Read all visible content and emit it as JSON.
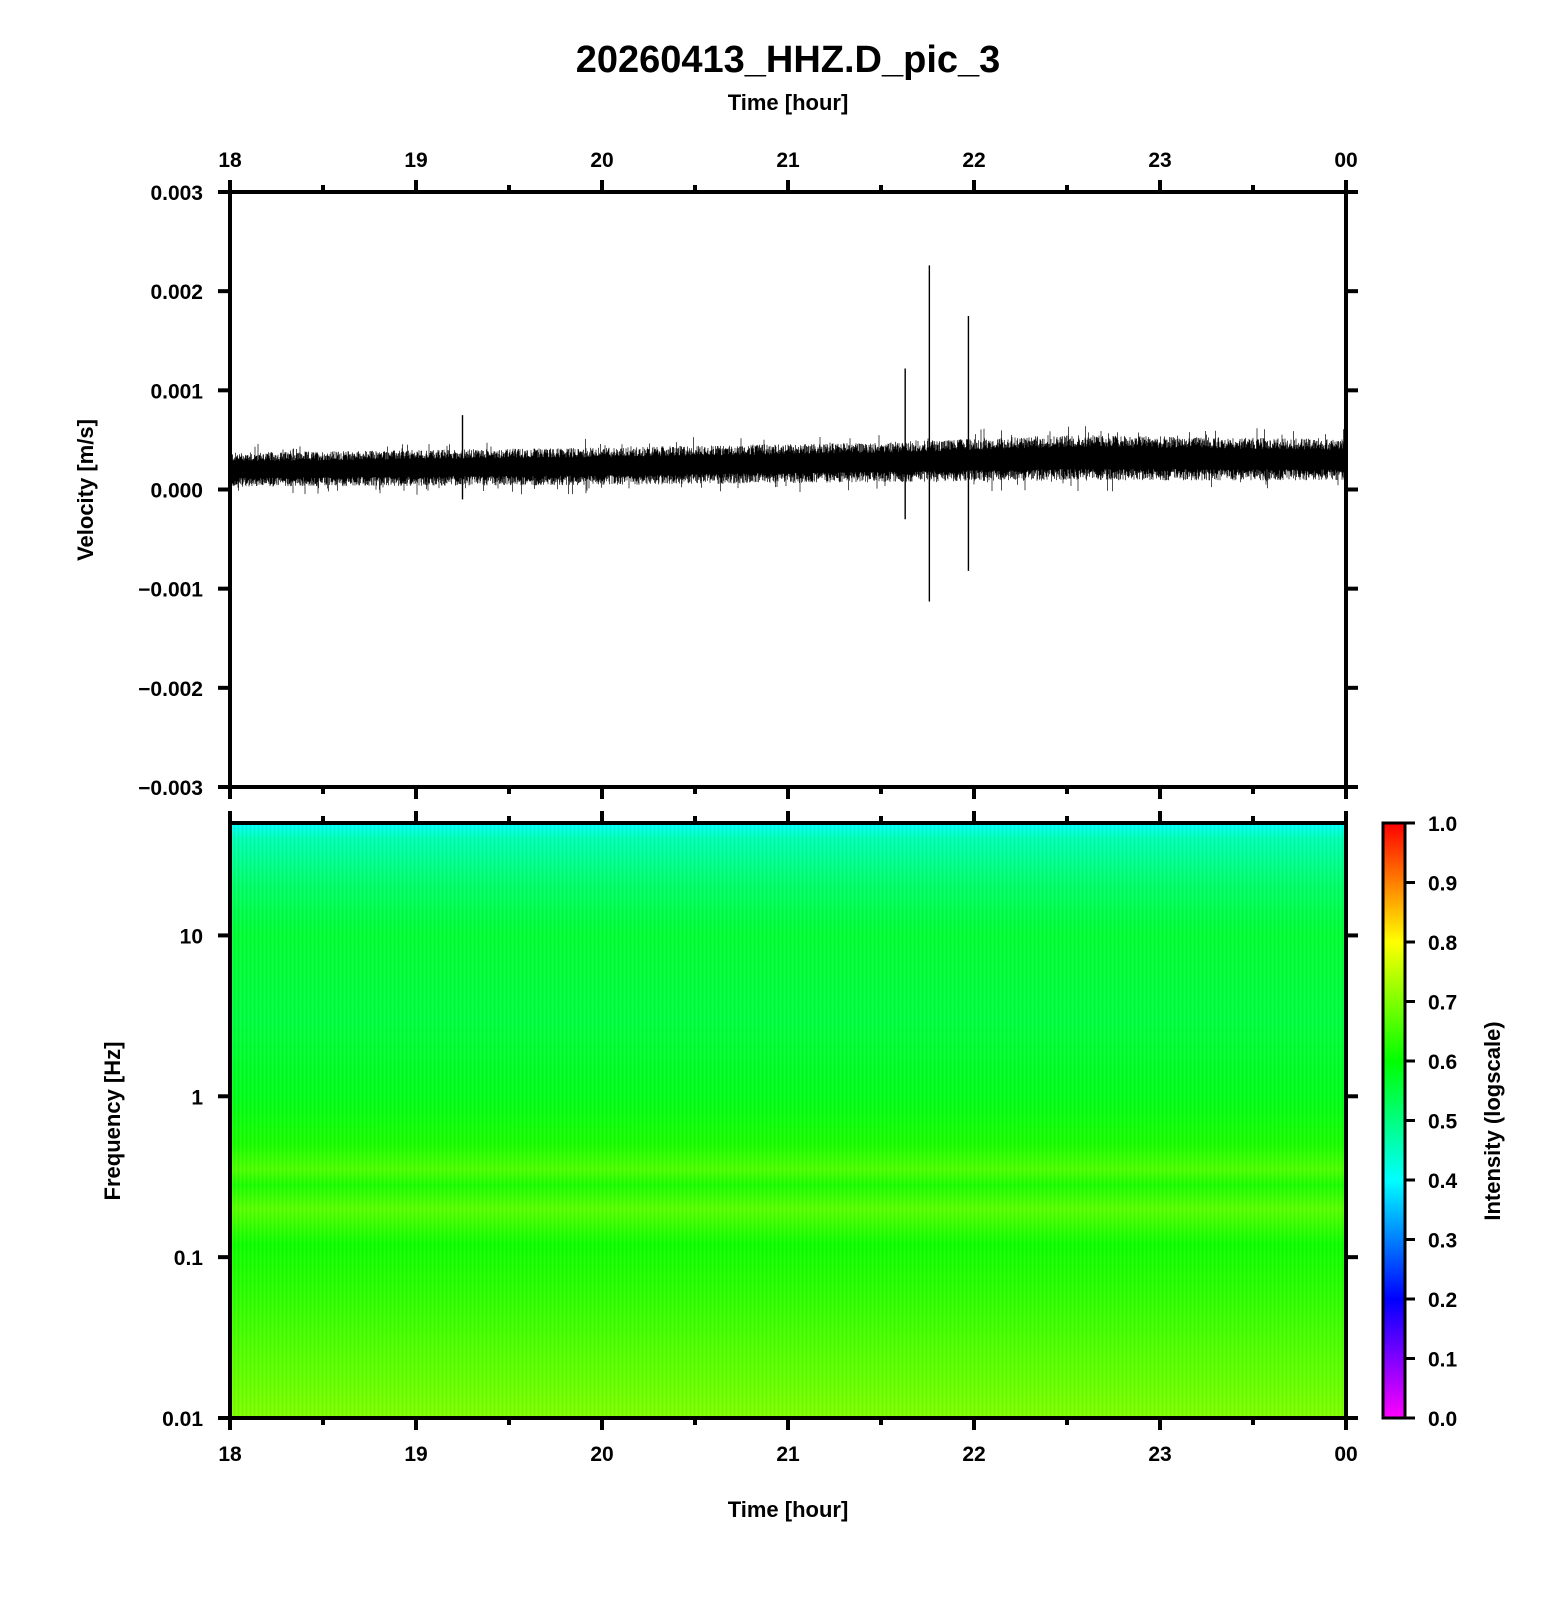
{
  "title": "20260413_HHZ.D_pic_3",
  "chart_data": [
    {
      "type": "line",
      "panel": "waveform",
      "xlabel": "Time [hour]",
      "ylabel": "Velocity [m/s]",
      "x_ticks": [
        "18",
        "19",
        "20",
        "21",
        "22",
        "23",
        "00"
      ],
      "y_ticks": [
        "0.003",
        "0.002",
        "0.001",
        "0.000",
        "−0.001",
        "−0.002",
        "−0.003"
      ],
      "xlim": [
        18,
        24
      ],
      "ylim": [
        -0.003,
        0.003
      ],
      "noise_band": [
        {
          "hour": 18.0,
          "low": 5e-05,
          "high": 0.00035
        },
        {
          "hour": 20.0,
          "low": 7e-05,
          "high": 0.0004
        },
        {
          "hour": 21.5,
          "low": 0.0001,
          "high": 0.00045
        },
        {
          "hour": 22.5,
          "low": 0.00012,
          "high": 0.00052
        },
        {
          "hour": 24.0,
          "low": 0.00012,
          "high": 0.00048
        }
      ],
      "spikes": [
        {
          "hour": 19.25,
          "min": -0.0001,
          "max": 0.00075
        },
        {
          "hour": 21.63,
          "min": -0.0003,
          "max": 0.00122
        },
        {
          "hour": 21.76,
          "min": -0.00113,
          "max": 0.00226
        },
        {
          "hour": 21.97,
          "min": -0.00082,
          "max": 0.00175
        }
      ],
      "color": "#000000"
    },
    {
      "type": "heatmap",
      "panel": "spectrogram",
      "xlabel": "Time [hour]",
      "ylabel": "Frequency [Hz]",
      "x_ticks": [
        "18",
        "19",
        "20",
        "21",
        "22",
        "23",
        "00"
      ],
      "y_ticks": [
        "10",
        "1",
        "0.1",
        "0.01"
      ],
      "y_scale": "log",
      "xlim": [
        18,
        24
      ],
      "ylim": [
        0.01,
        50
      ],
      "intensity_profile": [
        {
          "freq": 50,
          "value": 0.4
        },
        {
          "freq": 40,
          "value": 0.46
        },
        {
          "freq": 20,
          "value": 0.52
        },
        {
          "freq": 10,
          "value": 0.56
        },
        {
          "freq": 3,
          "value": 0.55
        },
        {
          "freq": 1,
          "value": 0.58
        },
        {
          "freq": 0.5,
          "value": 0.62
        },
        {
          "freq": 0.35,
          "value": 0.66
        },
        {
          "freq": 0.28,
          "value": 0.62
        },
        {
          "freq": 0.2,
          "value": 0.67
        },
        {
          "freq": 0.12,
          "value": 0.61
        },
        {
          "freq": 0.05,
          "value": 0.64
        },
        {
          "freq": 0.01,
          "value": 0.7
        }
      ],
      "colorbar": {
        "label": "Intensity (logscale)",
        "ticks": [
          "1.0",
          "0.9",
          "0.8",
          "0.7",
          "0.6",
          "0.5",
          "0.4",
          "0.3",
          "0.2",
          "0.1",
          "0.0"
        ],
        "range": [
          0,
          1
        ],
        "colors": [
          "#ff00ff",
          "#0000ff",
          "#00ffff",
          "#00ff00",
          "#ffff00",
          "#ff0000"
        ]
      }
    }
  ]
}
